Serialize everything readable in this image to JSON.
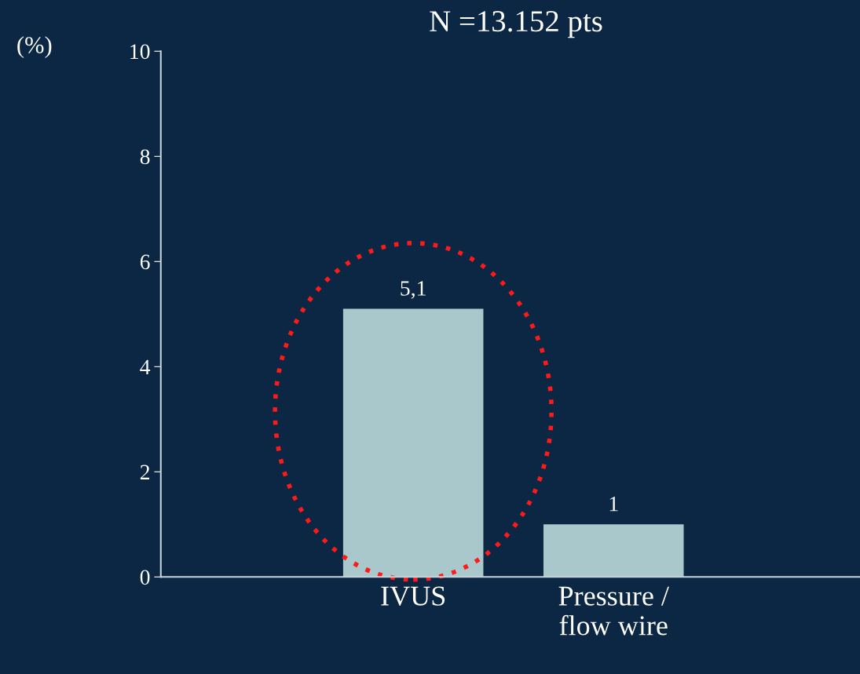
{
  "chart_data": {
    "type": "bar",
    "title": "N =13.152 pts",
    "ylabel": "(%)",
    "categories": [
      "IVUS",
      "Pressure /\nflow wire"
    ],
    "values": [
      5.1,
      1
    ],
    "value_labels": [
      "5,1",
      "1"
    ],
    "color": "#a9c8cb",
    "ylim": [
      0,
      10
    ],
    "yticks": [
      0,
      2,
      4,
      6,
      8,
      10
    ],
    "grid": false,
    "legend": false
  }
}
